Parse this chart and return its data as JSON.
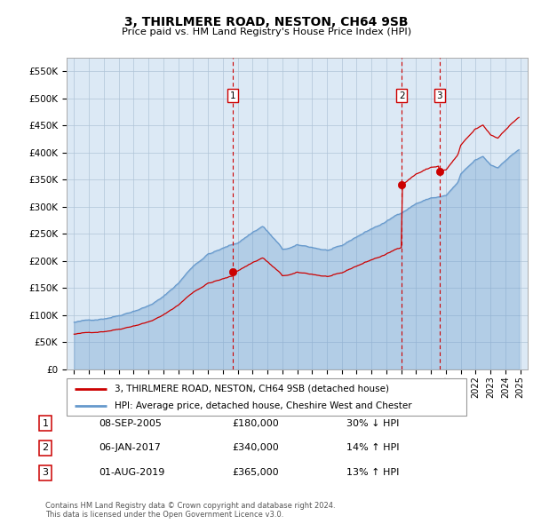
{
  "title": "3, THIRLMERE ROAD, NESTON, CH64 9SB",
  "subtitle": "Price paid vs. HM Land Registry's House Price Index (HPI)",
  "plot_bg_color": "#dce9f5",
  "hpi_line_color": "#6699cc",
  "price_line_color": "#cc0000",
  "vline_color": "#cc0000",
  "ylim": [
    0,
    575000
  ],
  "yticks": [
    0,
    50000,
    100000,
    150000,
    200000,
    250000,
    300000,
    350000,
    400000,
    450000,
    500000,
    550000
  ],
  "ytick_labels": [
    "£0",
    "£50K",
    "£100K",
    "£150K",
    "£200K",
    "£250K",
    "£300K",
    "£350K",
    "£400K",
    "£450K",
    "£500K",
    "£550K"
  ],
  "xlim_start": 1994.5,
  "xlim_end": 2025.5,
  "xtick_years": [
    1995,
    1996,
    1997,
    1998,
    1999,
    2000,
    2001,
    2002,
    2003,
    2004,
    2005,
    2006,
    2007,
    2008,
    2009,
    2010,
    2011,
    2012,
    2013,
    2014,
    2015,
    2016,
    2017,
    2018,
    2019,
    2020,
    2021,
    2022,
    2023,
    2024,
    2025
  ],
  "sale_events": [
    {
      "num": 1,
      "year": 2005.69,
      "price": 180000,
      "date": "08-SEP-2005",
      "pct": "30%",
      "dir": "↓"
    },
    {
      "num": 2,
      "year": 2017.03,
      "price": 340000,
      "date": "06-JAN-2017",
      "pct": "14%",
      "dir": "↑"
    },
    {
      "num": 3,
      "year": 2019.58,
      "price": 365000,
      "date": "01-AUG-2019",
      "pct": "13%",
      "dir": "↑"
    }
  ],
  "legend_line1": "3, THIRLMERE ROAD, NESTON, CH64 9SB (detached house)",
  "legend_line2": "HPI: Average price, detached house, Cheshire West and Chester",
  "footer1": "Contains HM Land Registry data © Crown copyright and database right 2024.",
  "footer2": "This data is licensed under the Open Government Licence v3.0."
}
